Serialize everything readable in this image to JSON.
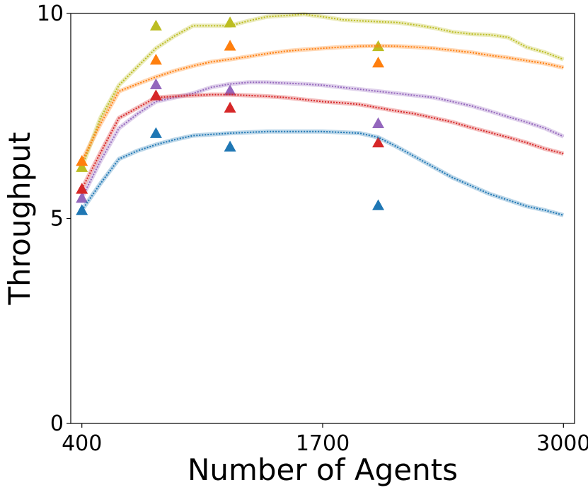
{
  "chart_data": {
    "type": "line",
    "xlabel": "Number of Agents",
    "ylabel": "Throughput",
    "xlim": [
      340,
      3060
    ],
    "ylim": [
      0,
      10
    ],
    "xticks": [
      400,
      1700,
      3000
    ],
    "xtick_labels": [
      "400",
      "1700",
      "3000"
    ],
    "yticks": [
      0,
      5,
      10
    ],
    "ytick_labels": [
      "0",
      "5",
      "10"
    ],
    "grid": false,
    "legend": "none",
    "x": [
      400,
      500,
      600,
      700,
      800,
      900,
      1000,
      1100,
      1200,
      1300,
      1400,
      1500,
      1600,
      1700,
      1800,
      1900,
      2000,
      2100,
      2200,
      2300,
      2400,
      2500,
      2600,
      2700,
      2800,
      2900,
      3000
    ],
    "series": [
      {
        "color": "#bcbd22",
        "values": [
          6.25,
          7.45,
          8.25,
          8.7,
          9.15,
          9.45,
          9.7,
          9.7,
          9.7,
          9.82,
          9.92,
          9.95,
          9.98,
          9.92,
          9.85,
          9.82,
          9.8,
          9.78,
          9.72,
          9.65,
          9.55,
          9.5,
          9.48,
          9.42,
          9.18,
          9.05,
          8.88
        ],
        "markers": [
          [
            400,
            6.25
          ],
          [
            800,
            9.7
          ],
          [
            1200,
            9.78
          ],
          [
            2000,
            9.2
          ]
        ]
      },
      {
        "color": "#ff7f0e",
        "values": [
          6.4,
          7.3,
          8.1,
          8.28,
          8.45,
          8.6,
          8.72,
          8.82,
          8.88,
          8.95,
          9.02,
          9.08,
          9.12,
          9.15,
          9.18,
          9.2,
          9.21,
          9.2,
          9.18,
          9.15,
          9.1,
          9.05,
          8.98,
          8.92,
          8.85,
          8.78,
          8.68
        ],
        "markers": [
          [
            400,
            6.4
          ],
          [
            800,
            8.87
          ],
          [
            1200,
            9.21
          ],
          [
            2000,
            8.8
          ]
        ]
      },
      {
        "color": "#9467bd",
        "values": [
          5.5,
          6.4,
          7.2,
          7.55,
          7.85,
          7.95,
          8.05,
          8.2,
          8.28,
          8.32,
          8.32,
          8.3,
          8.28,
          8.25,
          8.2,
          8.15,
          8.1,
          8.05,
          8.0,
          7.95,
          7.85,
          7.75,
          7.62,
          7.48,
          7.35,
          7.2,
          7.0
        ],
        "markers": [
          [
            400,
            5.5
          ],
          [
            800,
            8.27
          ],
          [
            1200,
            8.12
          ],
          [
            2000,
            7.32
          ]
        ]
      },
      {
        "color": "#d62728",
        "values": [
          5.72,
          6.6,
          7.45,
          7.7,
          7.95,
          7.98,
          8.0,
          8.02,
          8.02,
          8.0,
          7.98,
          7.95,
          7.9,
          7.85,
          7.82,
          7.78,
          7.7,
          7.62,
          7.55,
          7.45,
          7.35,
          7.22,
          7.1,
          6.98,
          6.85,
          6.7,
          6.58
        ],
        "markers": [
          [
            400,
            5.72
          ],
          [
            800,
            8.0
          ],
          [
            1200,
            7.7
          ],
          [
            2000,
            6.85
          ]
        ]
      },
      {
        "color": "#1f77b4",
        "values": [
          5.2,
          5.85,
          6.45,
          6.65,
          6.8,
          6.92,
          7.02,
          7.05,
          7.08,
          7.1,
          7.12,
          7.12,
          7.12,
          7.12,
          7.1,
          7.08,
          6.98,
          6.75,
          6.5,
          6.25,
          6.0,
          5.8,
          5.6,
          5.45,
          5.3,
          5.2,
          5.08
        ],
        "markers": [
          [
            400,
            5.2
          ],
          [
            800,
            7.08
          ],
          [
            1200,
            6.75
          ],
          [
            2000,
            5.32
          ]
        ]
      }
    ]
  }
}
